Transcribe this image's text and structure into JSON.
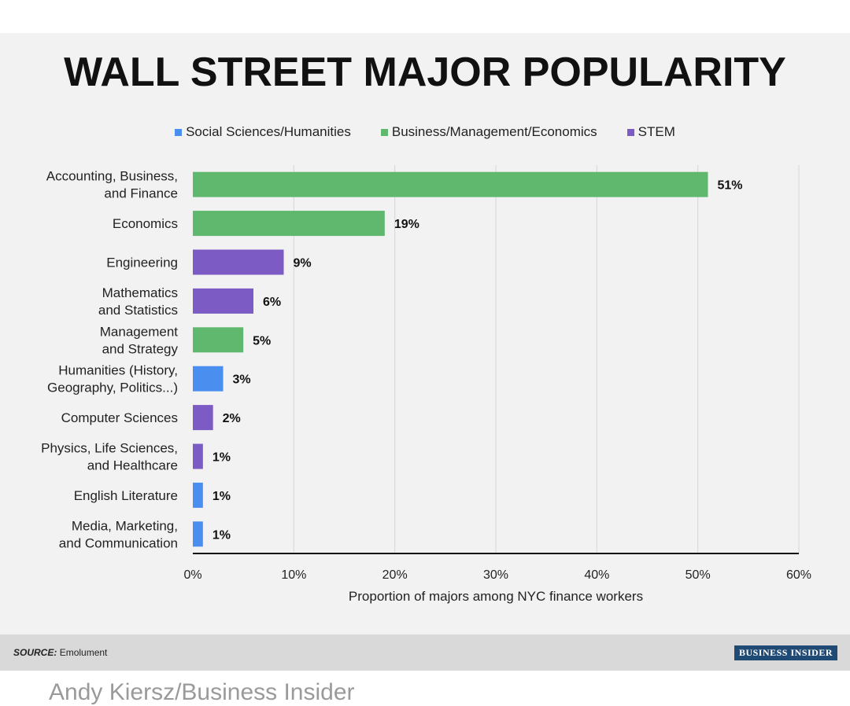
{
  "chart_data": {
    "type": "bar",
    "orientation": "horizontal",
    "title": "WALL STREET MAJOR POPULARITY",
    "xlabel": "Proportion of majors among NYC finance workers",
    "xlim": [
      0,
      60
    ],
    "xticks": [
      "0%",
      "10%",
      "20%",
      "30%",
      "40%",
      "50%",
      "60%"
    ],
    "grid": "vertical",
    "legend_position": "top-center",
    "legend": [
      {
        "name": "Social Sciences/Humanities",
        "color": "#4a8ef0"
      },
      {
        "name": "Business/Management/Economics",
        "color": "#5fb86e"
      },
      {
        "name": "STEM",
        "color": "#7c5cc4"
      }
    ],
    "bars": [
      {
        "lines": [
          "Accounting, Business,",
          "and Finance"
        ],
        "value": 51,
        "label": "51%",
        "group": 1
      },
      {
        "lines": [
          "Economics"
        ],
        "value": 19,
        "label": "19%",
        "group": 1
      },
      {
        "lines": [
          "Engineering"
        ],
        "value": 9,
        "label": "9%",
        "group": 2
      },
      {
        "lines": [
          "Mathematics",
          "and Statistics"
        ],
        "value": 6,
        "label": "6%",
        "group": 2
      },
      {
        "lines": [
          "Management",
          "and Strategy"
        ],
        "value": 5,
        "label": "5%",
        "group": 1
      },
      {
        "lines": [
          "Humanities (History,",
          "Geography, Politics...)"
        ],
        "value": 3,
        "label": "3%",
        "group": 0
      },
      {
        "lines": [
          "Computer Sciences"
        ],
        "value": 2,
        "label": "2%",
        "group": 2
      },
      {
        "lines": [
          "Physics, Life Sciences,",
          "and Healthcare"
        ],
        "value": 1,
        "label": "1%",
        "group": 2
      },
      {
        "lines": [
          "English Literature"
        ],
        "value": 1,
        "label": "1%",
        "group": 0
      },
      {
        "lines": [
          "Media, Marketing,",
          "and Communication"
        ],
        "value": 1,
        "label": "1%",
        "group": 0
      }
    ]
  },
  "footer": {
    "source_label": "SOURCE:",
    "source_value": "Emolument",
    "logo_text": "BUSINESS INSIDER"
  },
  "credit": "Andy Kiersz/Business Insider"
}
